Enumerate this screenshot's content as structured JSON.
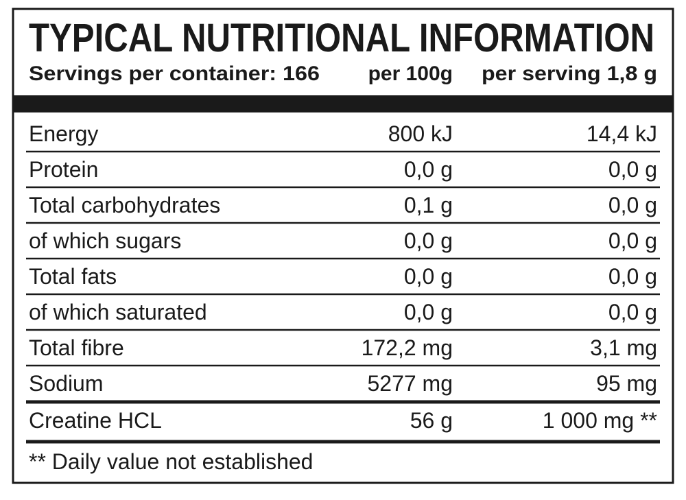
{
  "title": "TYPICAL NUTRITIONAL INFORMATION",
  "header": {
    "servings": "Servings per container: 166",
    "per_100g": "per 100g",
    "per_serving": "per serving 1,8 g"
  },
  "table": {
    "rows": [
      [
        "Energy",
        "800 kJ",
        "14,4 kJ"
      ],
      [
        "Protein",
        "0,0 g",
        "0,0 g"
      ],
      [
        "Total carbohydrates",
        "0,1 g",
        "0,0 g"
      ],
      [
        "of which sugars",
        "0,0 g",
        "0,0 g"
      ],
      [
        "Total fats",
        "0,0 g",
        "0,0 g"
      ],
      [
        "of which saturated",
        "0,0 g",
        "0,0 g"
      ],
      [
        "Total fibre",
        "172,2 mg",
        "3,1 mg"
      ],
      [
        "Sodium",
        "5277 mg",
        "95 mg"
      ],
      [
        "Creatine HCL",
        "56 g",
        "1 000 mg **"
      ]
    ]
  },
  "footnote": "** Daily value not established"
}
